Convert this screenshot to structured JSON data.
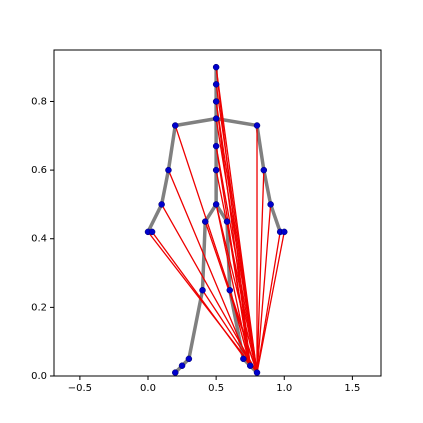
{
  "chart_data": {
    "type": "skeleton",
    "points": {
      "x": [
        0.5,
        0.5,
        0.5,
        0.5,
        0.2,
        0.8,
        0.5,
        0.5,
        0.5,
        0.15,
        0.1,
        0.0,
        0.03,
        0.85,
        0.9,
        0.97,
        1.0,
        0.42,
        0.58,
        0.4,
        0.6,
        0.3,
        0.25,
        0.2,
        0.7,
        0.75,
        0.8
      ],
      "y": [
        0.9,
        0.85,
        0.8,
        0.75,
        0.73,
        0.73,
        0.67,
        0.6,
        0.5,
        0.6,
        0.5,
        0.42,
        0.42,
        0.6,
        0.5,
        0.42,
        0.42,
        0.45,
        0.45,
        0.25,
        0.25,
        0.05,
        0.03,
        0.01,
        0.05,
        0.03,
        0.01
      ],
      "color": "#0000cc"
    },
    "skeleton": {
      "color": "#808080",
      "edges": [
        [
          0,
          1
        ],
        [
          1,
          2
        ],
        [
          2,
          3
        ],
        [
          3,
          4
        ],
        [
          3,
          5
        ],
        [
          3,
          6
        ],
        [
          6,
          7
        ],
        [
          7,
          8
        ],
        [
          4,
          9
        ],
        [
          9,
          10
        ],
        [
          10,
          11
        ],
        [
          11,
          12
        ],
        [
          5,
          13
        ],
        [
          13,
          14
        ],
        [
          14,
          15
        ],
        [
          15,
          16
        ],
        [
          8,
          17
        ],
        [
          8,
          18
        ],
        [
          17,
          19
        ],
        [
          18,
          20
        ],
        [
          19,
          21
        ],
        [
          21,
          22
        ],
        [
          22,
          23
        ],
        [
          20,
          24
        ],
        [
          24,
          25
        ],
        [
          25,
          26
        ]
      ]
    },
    "links": {
      "color": "#ee0000",
      "edges": [
        [
          0,
          25
        ],
        [
          1,
          26
        ],
        [
          2,
          25
        ],
        [
          3,
          26
        ],
        [
          4,
          26
        ],
        [
          5,
          26
        ],
        [
          6,
          25
        ],
        [
          7,
          26
        ],
        [
          8,
          25
        ],
        [
          9,
          25
        ],
        [
          10,
          26
        ],
        [
          11,
          26
        ],
        [
          12,
          25
        ],
        [
          13,
          26
        ],
        [
          14,
          26
        ],
        [
          15,
          26
        ],
        [
          16,
          26
        ],
        [
          17,
          26
        ],
        [
          18,
          25
        ],
        [
          19,
          26
        ],
        [
          20,
          25
        ],
        [
          0,
          26
        ],
        [
          2,
          26
        ],
        [
          6,
          26
        ],
        [
          8,
          26
        ]
      ]
    },
    "xlim": [
      -0.69,
      1.71
    ],
    "ylim": [
      0,
      0.95
    ],
    "xticks": [
      {
        "value": -0.5,
        "label": "−0.5"
      },
      {
        "value": 0,
        "label": "0.0"
      },
      {
        "value": 0.5,
        "label": "0.5"
      },
      {
        "value": 1,
        "label": "1.0"
      },
      {
        "value": 1.5,
        "label": "1.5"
      }
    ],
    "yticks": [
      {
        "value": 0,
        "label": "0.0"
      },
      {
        "value": 0.2,
        "label": "0.2"
      },
      {
        "value": 0.4,
        "label": "0.4"
      },
      {
        "value": 0.6,
        "label": "0.6"
      },
      {
        "value": 0.8,
        "label": "0.8"
      }
    ]
  }
}
